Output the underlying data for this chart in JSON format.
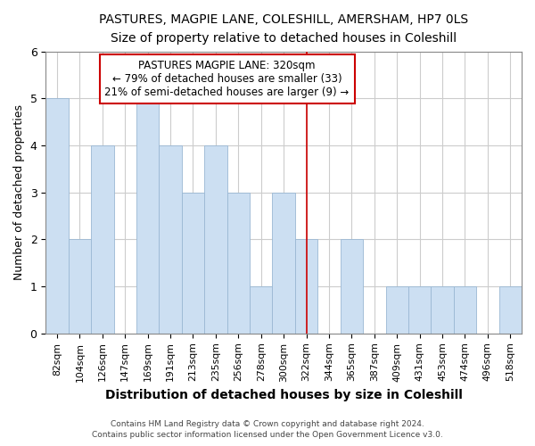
{
  "title": "PASTURES, MAGPIE LANE, COLESHILL, AMERSHAM, HP7 0LS",
  "subtitle": "Size of property relative to detached houses in Coleshill",
  "xlabel": "Distribution of detached houses by size in Coleshill",
  "ylabel": "Number of detached properties",
  "categories": [
    "82sqm",
    "104sqm",
    "126sqm",
    "147sqm",
    "169sqm",
    "191sqm",
    "213sqm",
    "235sqm",
    "256sqm",
    "278sqm",
    "300sqm",
    "322sqm",
    "344sqm",
    "365sqm",
    "387sqm",
    "409sqm",
    "431sqm",
    "453sqm",
    "474sqm",
    "496sqm",
    "518sqm"
  ],
  "values": [
    5,
    2,
    4,
    0,
    5,
    4,
    3,
    4,
    3,
    1,
    3,
    2,
    0,
    2,
    0,
    1,
    1,
    1,
    1,
    0,
    1
  ],
  "bar_color": "#ccdff2",
  "bar_edge_color": "#9ab8d4",
  "vline_x_index": 11,
  "vline_color": "#cc0000",
  "annotation_title": "PASTURES MAGPIE LANE: 320sqm",
  "annotation_line1": "← 79% of detached houses are smaller (33)",
  "annotation_line2": "21% of semi-detached houses are larger (9) →",
  "annotation_box_color": "#ffffff",
  "annotation_box_edge": "#cc0000",
  "ylim": [
    0,
    6
  ],
  "yticks": [
    0,
    1,
    2,
    3,
    4,
    5,
    6
  ],
  "footnote1": "Contains HM Land Registry data © Crown copyright and database right 2024.",
  "footnote2": "Contains public sector information licensed under the Open Government Licence v3.0.",
  "bg_color": "#ffffff",
  "grid_color": "#cccccc"
}
